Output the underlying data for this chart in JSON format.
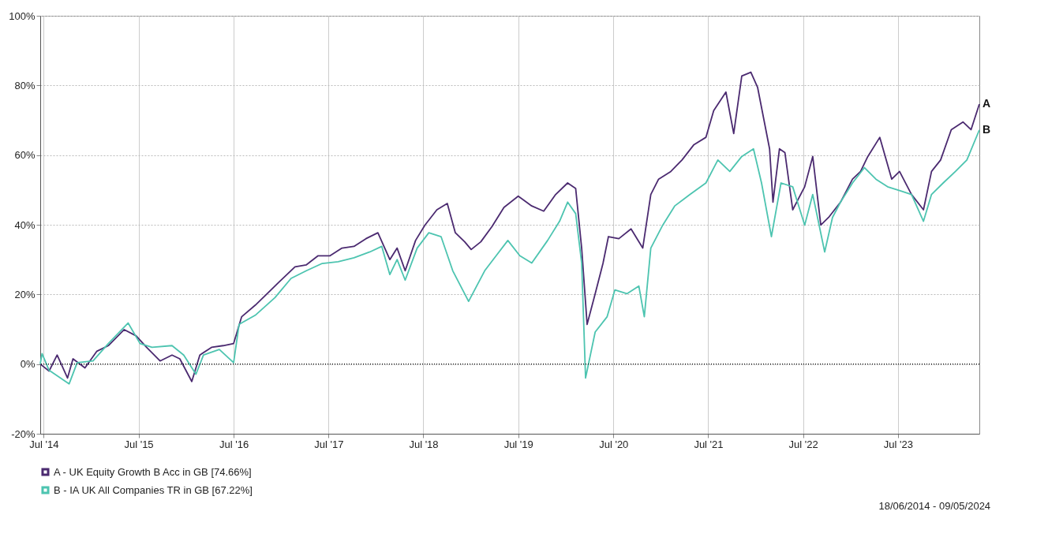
{
  "chart_data": {
    "type": "line",
    "annotations": [
      "18/06/2014 - 09/05/2024",
      {
        "text": "A",
        "x": "2024-05-09",
        "y": 74.66
      },
      {
        "text": "B",
        "x": "2024-05-09",
        "y": 67.22
      }
    ],
    "xlim": [
      "2014-06-18",
      "2024-05-09"
    ],
    "xticks": [
      {
        "value": "2014-07-01",
        "label": "Jul '14"
      },
      {
        "value": "2015-07-01",
        "label": "Jul '15"
      },
      {
        "value": "2016-07-01",
        "label": "Jul '16"
      },
      {
        "value": "2017-07-01",
        "label": "Jul '17"
      },
      {
        "value": "2018-07-01",
        "label": "Jul '18"
      },
      {
        "value": "2019-07-01",
        "label": "Jul '19"
      },
      {
        "value": "2020-07-01",
        "label": "Jul '20"
      },
      {
        "value": "2021-07-01",
        "label": "Jul '21"
      },
      {
        "value": "2022-07-01",
        "label": "Jul '22"
      },
      {
        "value": "2023-07-01",
        "label": "Jul '23"
      }
    ],
    "ylim": [
      -20,
      100
    ],
    "yticks": [
      {
        "value": -20,
        "label": "-20%"
      },
      {
        "value": 0,
        "label": "0%"
      },
      {
        "value": 20,
        "label": "20%"
      },
      {
        "value": 40,
        "label": "40%"
      },
      {
        "value": 60,
        "label": "60%"
      },
      {
        "value": 80,
        "label": "80%"
      },
      {
        "value": 100,
        "label": "100%"
      }
    ],
    "grid": true,
    "legend": "bottom",
    "marker": "none",
    "line_style": "solid",
    "ref_lines": [
      {
        "axis": "y",
        "value": 0,
        "color": "#000000",
        "line_style": "dotted"
      }
    ],
    "series": [
      {
        "name": "A - UK Equity Growth B Acc in GB [74.66%]",
        "color": "#4b2a70",
        "x": [
          "2014-06-18",
          "2014-07-22",
          "2014-08-22",
          "2014-10-01",
          "2014-10-22",
          "2014-12-07",
          "2015-01-22",
          "2015-03-07",
          "2015-05-07",
          "2015-06-22",
          "2015-08-01",
          "2015-09-22",
          "2015-11-07",
          "2015-12-07",
          "2016-01-22",
          "2016-02-22",
          "2016-04-07",
          "2016-05-22",
          "2016-07-01",
          "2016-08-01",
          "2016-09-22",
          "2016-11-07",
          "2016-12-22",
          "2017-02-22",
          "2017-04-07",
          "2017-05-22",
          "2017-07-07",
          "2017-08-22",
          "2017-10-07",
          "2017-11-22",
          "2018-01-07",
          "2018-02-22",
          "2018-03-22",
          "2018-04-22",
          "2018-06-01",
          "2018-07-07",
          "2018-08-22",
          "2018-10-01",
          "2018-11-01",
          "2018-12-07",
          "2019-01-01",
          "2019-02-07",
          "2019-03-22",
          "2019-05-07",
          "2019-07-01",
          "2019-08-22",
          "2019-10-07",
          "2019-11-22",
          "2020-01-07",
          "2020-02-07",
          "2020-03-01",
          "2020-03-22",
          "2020-04-22",
          "2020-05-22",
          "2020-06-12",
          "2020-07-22",
          "2020-09-07",
          "2020-10-22",
          "2020-11-22",
          "2020-12-22",
          "2021-02-07",
          "2021-03-22",
          "2021-05-07",
          "2021-06-22",
          "2021-07-22",
          "2021-09-07",
          "2021-10-07",
          "2021-11-07",
          "2021-12-12",
          "2022-01-07",
          "2022-02-22",
          "2022-03-07",
          "2022-04-01",
          "2022-04-22",
          "2022-05-22",
          "2022-07-07",
          "2022-08-07",
          "2022-09-07",
          "2022-10-07",
          "2022-11-22",
          "2023-01-07",
          "2023-02-07",
          "2023-03-07",
          "2023-04-22",
          "2023-06-07",
          "2023-07-07",
          "2023-08-22",
          "2023-10-07",
          "2023-11-07",
          "2023-12-12",
          "2024-01-22",
          "2024-03-07",
          "2024-04-07",
          "2024-05-09"
        ],
        "values": [
          0,
          -2,
          2.6,
          -4,
          1.5,
          -1.1,
          3.7,
          5.3,
          9.9,
          8.1,
          4.8,
          0.9,
          2.6,
          1.5,
          -5,
          2.6,
          4.8,
          5.3,
          5.9,
          13.6,
          16.9,
          20.2,
          23.5,
          27.9,
          28.5,
          31.1,
          31.1,
          33.3,
          33.8,
          36,
          37.7,
          30,
          33.3,
          26.8,
          35.5,
          39.9,
          44.3,
          46.1,
          37.7,
          35.1,
          32.9,
          35.1,
          39.5,
          45,
          48.2,
          45.4,
          43.9,
          48.7,
          52,
          50.4,
          33.3,
          11.4,
          20.2,
          28.9,
          36.6,
          36,
          38.8,
          33.3,
          48.7,
          53.1,
          55.3,
          58.6,
          63,
          65.1,
          72.8,
          78.1,
          66.2,
          82.7,
          83.8,
          79.4,
          61.8,
          46.5,
          61.8,
          60.7,
          44.3,
          50.9,
          59.6,
          39.9,
          42.1,
          46.5,
          53.1,
          55.3,
          59.6,
          65.1,
          53.1,
          55.3,
          48.7,
          44.3,
          55.3,
          58.6,
          67.3,
          69.5,
          67.3,
          74.66
        ]
      },
      {
        "name": "B - IA UK All Companies TR in GB [67.22%]",
        "color": "#4dc4b0",
        "x": [
          "2014-06-18",
          "2014-06-25",
          "2014-07-22",
          "2014-10-07",
          "2014-11-07",
          "2015-01-07",
          "2015-03-07",
          "2015-05-22",
          "2015-07-07",
          "2015-08-22",
          "2015-11-07",
          "2015-12-22",
          "2016-02-07",
          "2016-03-07",
          "2016-05-07",
          "2016-07-01",
          "2016-07-22",
          "2016-09-22",
          "2016-12-07",
          "2017-02-07",
          "2017-04-07",
          "2017-06-07",
          "2017-08-07",
          "2017-10-07",
          "2017-12-07",
          "2018-01-22",
          "2018-02-22",
          "2018-03-22",
          "2018-04-22",
          "2018-06-07",
          "2018-07-22",
          "2018-09-07",
          "2018-10-22",
          "2018-12-22",
          "2019-02-22",
          "2019-04-07",
          "2019-05-22",
          "2019-07-07",
          "2019-08-22",
          "2019-10-22",
          "2019-12-07",
          "2020-01-07",
          "2020-02-07",
          "2020-03-01",
          "2020-03-16",
          "2020-04-22",
          "2020-06-07",
          "2020-07-07",
          "2020-08-22",
          "2020-10-07",
          "2020-10-28",
          "2020-11-22",
          "2021-01-07",
          "2021-02-22",
          "2021-04-22",
          "2021-06-22",
          "2021-08-07",
          "2021-09-22",
          "2021-11-07",
          "2021-12-22",
          "2022-01-22",
          "2022-03-01",
          "2022-04-07",
          "2022-05-22",
          "2022-07-07",
          "2022-08-07",
          "2022-09-22",
          "2022-10-22",
          "2022-11-22",
          "2023-01-07",
          "2023-02-22",
          "2023-04-07",
          "2023-05-22",
          "2023-07-07",
          "2023-08-22",
          "2023-10-07",
          "2023-11-07",
          "2023-12-22",
          "2024-02-07",
          "2024-03-22",
          "2024-05-09"
        ],
        "values": [
          0,
          3,
          -1.8,
          -5.7,
          0.4,
          0.9,
          5.9,
          11.8,
          5.9,
          4.8,
          5.3,
          2.6,
          -2.9,
          2.6,
          4.2,
          0.4,
          11.4,
          14,
          19.1,
          24.6,
          26.8,
          28.9,
          29.4,
          30.5,
          32.2,
          33.8,
          25.7,
          30,
          24.1,
          33.3,
          37.7,
          36.6,
          26.8,
          18,
          26.8,
          31.1,
          35.5,
          31.1,
          29,
          35.5,
          41,
          46.5,
          43.2,
          29,
          -4,
          9.2,
          13.6,
          21.3,
          20.2,
          22.4,
          13.6,
          33.3,
          39.9,
          45.4,
          48.7,
          52,
          58.6,
          55.3,
          59.6,
          61.8,
          52,
          36.6,
          52,
          50.9,
          39.9,
          48.7,
          32.2,
          42.1,
          46.5,
          52,
          56.4,
          53.1,
          50.9,
          49.8,
          48.7,
          41,
          48.7,
          52,
          55.3,
          58.6,
          67.22
        ]
      }
    ]
  }
}
